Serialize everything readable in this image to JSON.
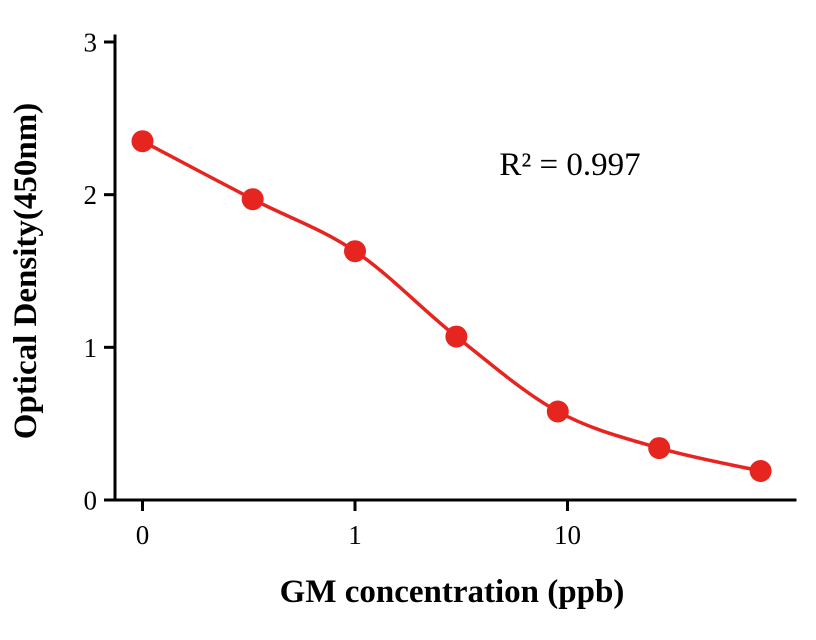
{
  "chart_data": {
    "type": "scatter",
    "title": "",
    "xlabel": "GM concentration (ppb)",
    "ylabel": "Optical Density(450nm)",
    "annotation": "R² = 0.997",
    "x_scale": "log-with-zero",
    "ylim": [
      0,
      3
    ],
    "x": [
      0,
      0.33,
      1,
      3,
      9,
      27,
      81
    ],
    "y": [
      2.35,
      1.97,
      1.63,
      1.07,
      0.58,
      0.34,
      0.19
    ],
    "x_ticks": [
      {
        "value": 0,
        "label": "0"
      },
      {
        "value": 1,
        "label": "1"
      },
      {
        "value": 10,
        "label": "10"
      }
    ],
    "y_ticks": [
      {
        "value": 0,
        "label": "0"
      },
      {
        "value": 1,
        "label": "1"
      },
      {
        "value": 2,
        "label": "2"
      },
      {
        "value": 3,
        "label": "3"
      }
    ],
    "curve_color": "#e62420",
    "point_color": "#e62420",
    "axis_color": "#000000",
    "fit_type": "sigmoidal (4PL) standard curve"
  }
}
